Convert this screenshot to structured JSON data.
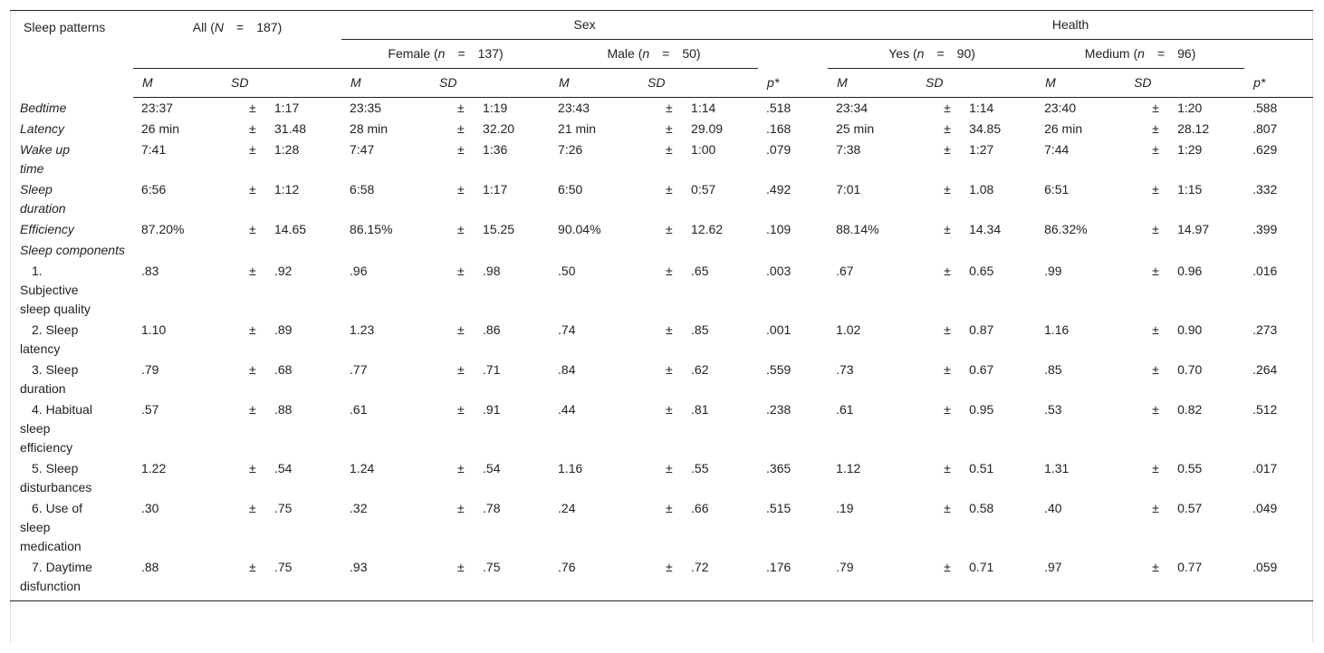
{
  "header": {
    "corner": "Sleep patterns",
    "all": {
      "open": "All (",
      "symbol": "N",
      "equals": "=",
      "close": "187)"
    },
    "sex": {
      "title": "Sex",
      "groups": [
        {
          "open": "Female (",
          "symbol": "n",
          "equals": "=",
          "close": "137)"
        },
        {
          "open": "Male (",
          "symbol": "n",
          "equals": "=",
          "close": "50)"
        }
      ]
    },
    "health": {
      "title": "Health",
      "groups": [
        {
          "open": "Yes (",
          "symbol": "n",
          "equals": "=",
          "close": "90)"
        },
        {
          "open": "Medium (",
          "symbol": "n",
          "equals": "=",
          "close": "96)"
        }
      ]
    },
    "columns": [
      "M",
      "SD",
      "M",
      "SD",
      "M",
      "SD",
      "p*",
      "M",
      "SD",
      "M",
      "SD",
      "p*"
    ]
  },
  "table": {
    "rows": [
      {
        "label": "Bedtime",
        "cells": [
          "23:37",
          "±",
          "1:17",
          "23:35",
          "±",
          "1:19",
          "23:43",
          "±",
          "1:14",
          ".518",
          "23:34",
          "±",
          "1:14",
          "23:40",
          "±",
          "1:20",
          ".588"
        ]
      },
      {
        "label": "Latency",
        "cells": [
          "26 min",
          "±",
          "31.48",
          "28 min",
          "±",
          "32.20",
          "21 min",
          "±",
          "29.09",
          ".168",
          "25 min",
          "±",
          "34.85",
          "26 min",
          "±",
          "28.12",
          ".807"
        ]
      },
      {
        "label": "Wake up time",
        "cells": [
          "7:41",
          "±",
          "1:28",
          "7:47",
          "±",
          "1:36",
          "7:26",
          "±",
          "1:00",
          ".079",
          "7:38",
          "±",
          "1:27",
          "7:44",
          "±",
          "1:29",
          ".629"
        ]
      },
      {
        "label": "Sleep duration",
        "cells": [
          "6:56",
          "±",
          "1:12",
          "6:58",
          "±",
          "1:17",
          "6:50",
          "±",
          "0:57",
          ".492",
          "7:01",
          "±",
          "1.08",
          "6:51",
          "±",
          "1:15",
          ".332"
        ]
      },
      {
        "label": "Efficiency",
        "cells": [
          "87.20%",
          "±",
          "14.65",
          "86.15%",
          "±",
          "15.25",
          "90.04%",
          "±",
          "12.62",
          ".109",
          "88.14%",
          "±",
          "14.34",
          "86.32%",
          "±",
          "14.97",
          ".399"
        ]
      },
      {
        "label": "Sleep components"
      },
      {
        "label": "1. Subjective sleep quality",
        "cells": [
          ".83",
          "±",
          ".92",
          ".96",
          "±",
          ".98",
          ".50",
          "±",
          ".65",
          ".003",
          ".67",
          "±",
          "0.65",
          ".99",
          "±",
          "0.96",
          ".016"
        ]
      },
      {
        "label": "2. Sleep latency",
        "cells": [
          "1.10",
          "±",
          ".89",
          "1.23",
          "±",
          ".86",
          ".74",
          "±",
          ".85",
          ".001",
          "1.02",
          "±",
          "0.87",
          "1.16",
          "±",
          "0.90",
          ".273"
        ]
      },
      {
        "label": "3. Sleep duration",
        "cells": [
          ".79",
          "±",
          ".68",
          ".77",
          "±",
          ".71",
          ".84",
          "±",
          ".62",
          ".559",
          ".73",
          "±",
          "0.67",
          ".85",
          "±",
          "0.70",
          ".264"
        ]
      },
      {
        "label": "4. Habitual sleep efficiency",
        "cells": [
          ".57",
          "±",
          ".88",
          ".61",
          "±",
          ".91",
          ".44",
          "±",
          ".81",
          ".238",
          ".61",
          "±",
          "0.95",
          ".53",
          "±",
          "0.82",
          ".512"
        ]
      },
      {
        "label": "5. Sleep disturbances",
        "cells": [
          "1.22",
          "±",
          ".54",
          "1.24",
          "±",
          ".54",
          "1.16",
          "±",
          ".55",
          ".365",
          "1.12",
          "±",
          "0.51",
          "1.31",
          "±",
          "0.55",
          ".017"
        ]
      },
      {
        "label": "6. Use of sleep medication",
        "cells": [
          ".30",
          "±",
          ".75",
          ".32",
          "±",
          ".78",
          ".24",
          "±",
          ".66",
          ".515",
          ".19",
          "±",
          "0.58",
          ".40",
          "±",
          "0.57",
          ".049"
        ]
      },
      {
        "label": "7. Daytime disfunction",
        "cells": [
          ".88",
          "±",
          ".75",
          ".93",
          "±",
          ".75",
          ".76",
          "±",
          ".72",
          ".176",
          ".79",
          "±",
          "0.71",
          ".97",
          "±",
          "0.77",
          ".059"
        ]
      }
    ]
  }
}
